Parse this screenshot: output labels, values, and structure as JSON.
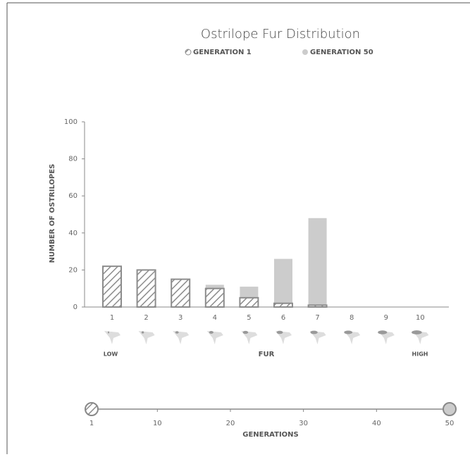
{
  "chart_data": [
    {
      "type": "bar",
      "title": "Ostrilope Fur Distribution",
      "ylabel": "NUMBER OF OSTRILOPES",
      "xlabel": "FUR",
      "low_label": "LOW",
      "high_label": "HIGH",
      "categories": [
        "1",
        "2",
        "3",
        "4",
        "5",
        "6",
        "7",
        "8",
        "9",
        "10"
      ],
      "series": [
        {
          "name": "GENERATION 1",
          "color": "#8c8c8c",
          "values": [
            22,
            20,
            15,
            10,
            5,
            2,
            1,
            0,
            0,
            0
          ]
        },
        {
          "name": "GENERATION 50",
          "color": "#cccccc",
          "values": [
            0,
            0,
            0,
            12,
            11,
            26,
            48,
            0,
            0,
            0
          ]
        }
      ],
      "ylim": [
        0,
        100
      ],
      "yticks": [
        0,
        20,
        40,
        60,
        80,
        100
      ]
    },
    {
      "type": "slider",
      "xlabel": "GENERATIONS",
      "xlim": [
        1,
        50
      ],
      "xticks": [
        1,
        10,
        20,
        30,
        40,
        50
      ],
      "values": [
        1,
        50
      ]
    }
  ]
}
